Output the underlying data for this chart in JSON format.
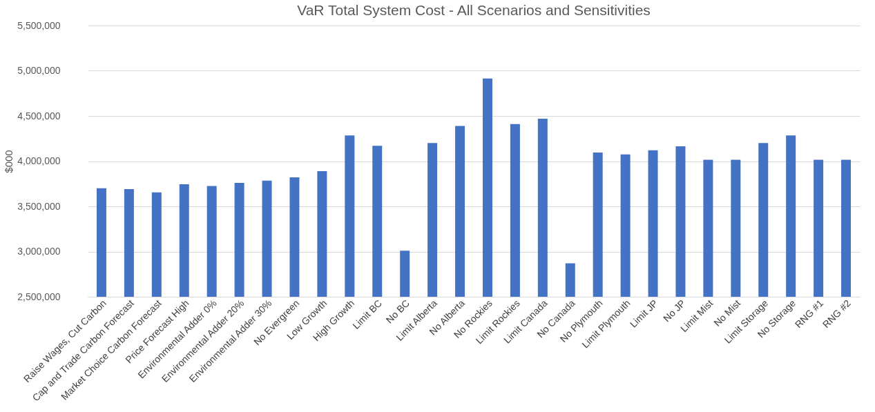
{
  "chart_data": {
    "type": "bar",
    "title": "VaR Total System Cost - All Scenarios and Sensitivities",
    "ylabel": "$000",
    "categories": [
      "Raise Wages, Cut Carbon",
      "Cap and Trade Carbon Forecast",
      "Market Choice Carbon Forecast",
      "Price Forecast High",
      "Environmental Adder 0%",
      "Environmental Adder 20%",
      "Environmental Adder 30%",
      "No Evergreen",
      "Low Growth",
      "High Growth",
      "Limit BC",
      "No BC",
      "Limit Alberta",
      "No Alberta",
      "No Rockies",
      "Limit Rockies",
      "Limit Canada",
      "No Canada",
      "No Plymouth",
      "Limit Plymouth",
      "Limit JP",
      "No JP",
      "Limit Mist",
      "No Mist",
      "Limit Storage",
      "No Storage",
      "RNG #1",
      "RNG #2"
    ],
    "values": [
      3700000,
      3690000,
      3655000,
      3745000,
      3725000,
      3760000,
      3785000,
      3820000,
      3890000,
      4285000,
      4170000,
      3010000,
      4200000,
      4390000,
      4915000,
      4410000,
      4470000,
      2870000,
      4095000,
      4075000,
      4120000,
      4165000,
      4015000,
      4015000,
      4200000,
      4285000,
      4015000,
      4015000
    ],
    "color": "#4472c4",
    "ylim": [
      2500000,
      5500000
    ],
    "yticks": [
      {
        "value": 2500000,
        "label": "2,500,000"
      },
      {
        "value": 3000000,
        "label": "3,000,000"
      },
      {
        "value": 3500000,
        "label": "3,500,000"
      },
      {
        "value": 4000000,
        "label": "4,000,000"
      },
      {
        "value": 4500000,
        "label": "4,500,000"
      },
      {
        "value": 5000000,
        "label": "5,000,000"
      },
      {
        "value": 5500000,
        "label": "5,500,000"
      }
    ],
    "grid": "y"
  }
}
